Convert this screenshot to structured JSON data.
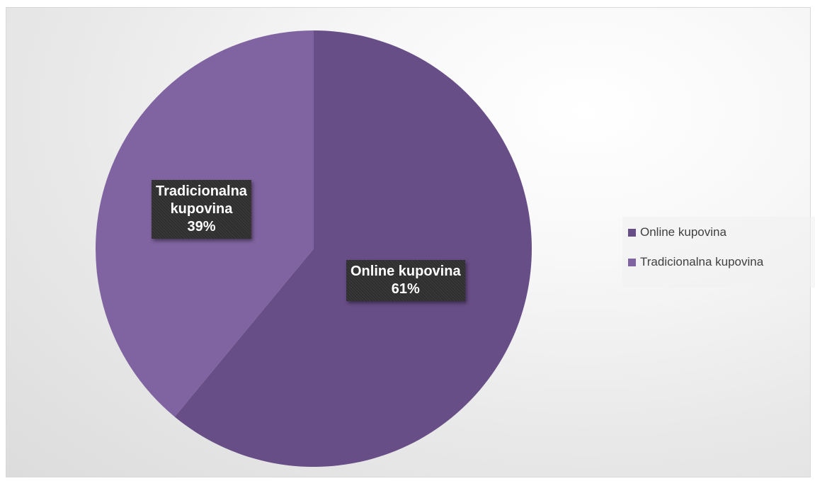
{
  "chart_data": {
    "type": "pie",
    "categories": [
      "Online kupovina",
      "Tradicionalna kupovina"
    ],
    "values": [
      61,
      39
    ],
    "colors": [
      "#684e86",
      "#8064a1"
    ],
    "data_labels": [
      {
        "line1": "Online kupovina",
        "line2": "61%"
      },
      {
        "line1": "Tradicionalna",
        "line2": "kupovina",
        "line3": "39%"
      }
    ],
    "legend": {
      "position": "right",
      "entries": [
        "Online kupovina",
        "Tradicionalna kupovina"
      ]
    }
  }
}
